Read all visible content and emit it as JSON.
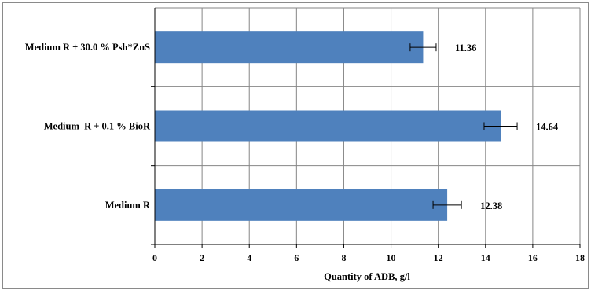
{
  "chart_data": {
    "type": "bar",
    "orientation": "horizontal",
    "categories": [
      "Medium R",
      "Medium  R + 0.1 % BioR",
      "Medium R + 30.0 % Psh*ZnS"
    ],
    "values": [
      12.38,
      14.64,
      11.36
    ],
    "value_labels": [
      "12.38",
      "14.64",
      "11.36"
    ],
    "error_bars": [
      0.6,
      0.7,
      0.55
    ],
    "title": "",
    "xlabel": "Quantity  of ADB, g/l",
    "ylabel": "",
    "xlim": [
      0,
      18
    ],
    "xticks": [
      "0",
      "2",
      "4",
      "6",
      "8",
      "10",
      "12",
      "14",
      "16",
      "18"
    ],
    "grid": true,
    "legend": "none",
    "colors": {
      "bar": "#4f81bd",
      "grid": "#868686",
      "axis": "#000000",
      "frame": "#8a8a8a"
    }
  }
}
